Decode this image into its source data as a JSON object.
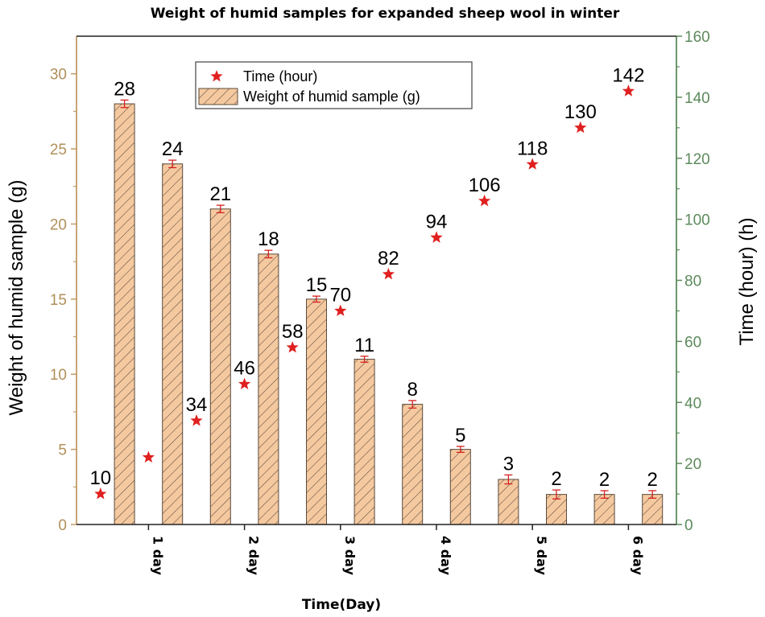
{
  "chart_data": {
    "type": "bar",
    "title": "Weight of humid samples for expanded sheep wool in winter",
    "xlabel": "Time(Day)",
    "ylabel_left": "Weight of humid sample (g)",
    "ylabel_right": "Time (hour) (h)",
    "ylim_left": [
      0,
      32.5
    ],
    "ylim_right": [
      0,
      160
    ],
    "yticks_left": [
      0,
      5,
      10,
      15,
      20,
      25,
      30
    ],
    "yticks_right": [
      0,
      20,
      40,
      60,
      80,
      100,
      120,
      140,
      160
    ],
    "day_ticks": [
      {
        "label": "1 day",
        "x": 2
      },
      {
        "label": "2 day",
        "x": 6
      },
      {
        "label": "3 day",
        "x": 10
      },
      {
        "label": "4 day",
        "x": 14
      },
      {
        "label": "5 day",
        "x": 18
      },
      {
        "label": "6 day",
        "x": 22
      }
    ],
    "legend": {
      "position": "top-center",
      "entries": [
        "Time (hour)",
        "Weight of humid sample (g)"
      ]
    },
    "series": [
      {
        "name": "Weight of humid sample (g)",
        "kind": "bar",
        "axis": "left",
        "color": "#f5c9a0",
        "edge_color": "#5a4a3a",
        "x": [
          1,
          3,
          5,
          7,
          9,
          11,
          13,
          15,
          17,
          19,
          21,
          23
        ],
        "values": [
          28,
          24,
          21,
          18,
          15,
          11,
          8,
          5,
          3,
          2,
          2,
          2
        ],
        "error": [
          0.25,
          0.25,
          0.25,
          0.25,
          0.2,
          0.2,
          0.25,
          0.2,
          0.3,
          0.3,
          0.25,
          0.25
        ],
        "labels": [
          "28",
          "24",
          "21",
          "18",
          "15",
          "11",
          "8",
          "5",
          "3",
          "2",
          "2",
          "2"
        ]
      },
      {
        "name": "Time (hour)",
        "kind": "scatter",
        "axis": "right",
        "marker": "star",
        "color": "#e02020",
        "x": [
          0,
          2,
          4,
          6,
          8,
          10,
          12,
          14,
          16,
          18,
          20,
          22
        ],
        "values": [
          10,
          22,
          34,
          46,
          58,
          70,
          82,
          94,
          106,
          118,
          130,
          142
        ],
        "labels": [
          "10",
          "",
          "34",
          "46",
          "58",
          "70",
          "82",
          "94",
          "106",
          "118",
          "130",
          "142"
        ]
      }
    ]
  }
}
